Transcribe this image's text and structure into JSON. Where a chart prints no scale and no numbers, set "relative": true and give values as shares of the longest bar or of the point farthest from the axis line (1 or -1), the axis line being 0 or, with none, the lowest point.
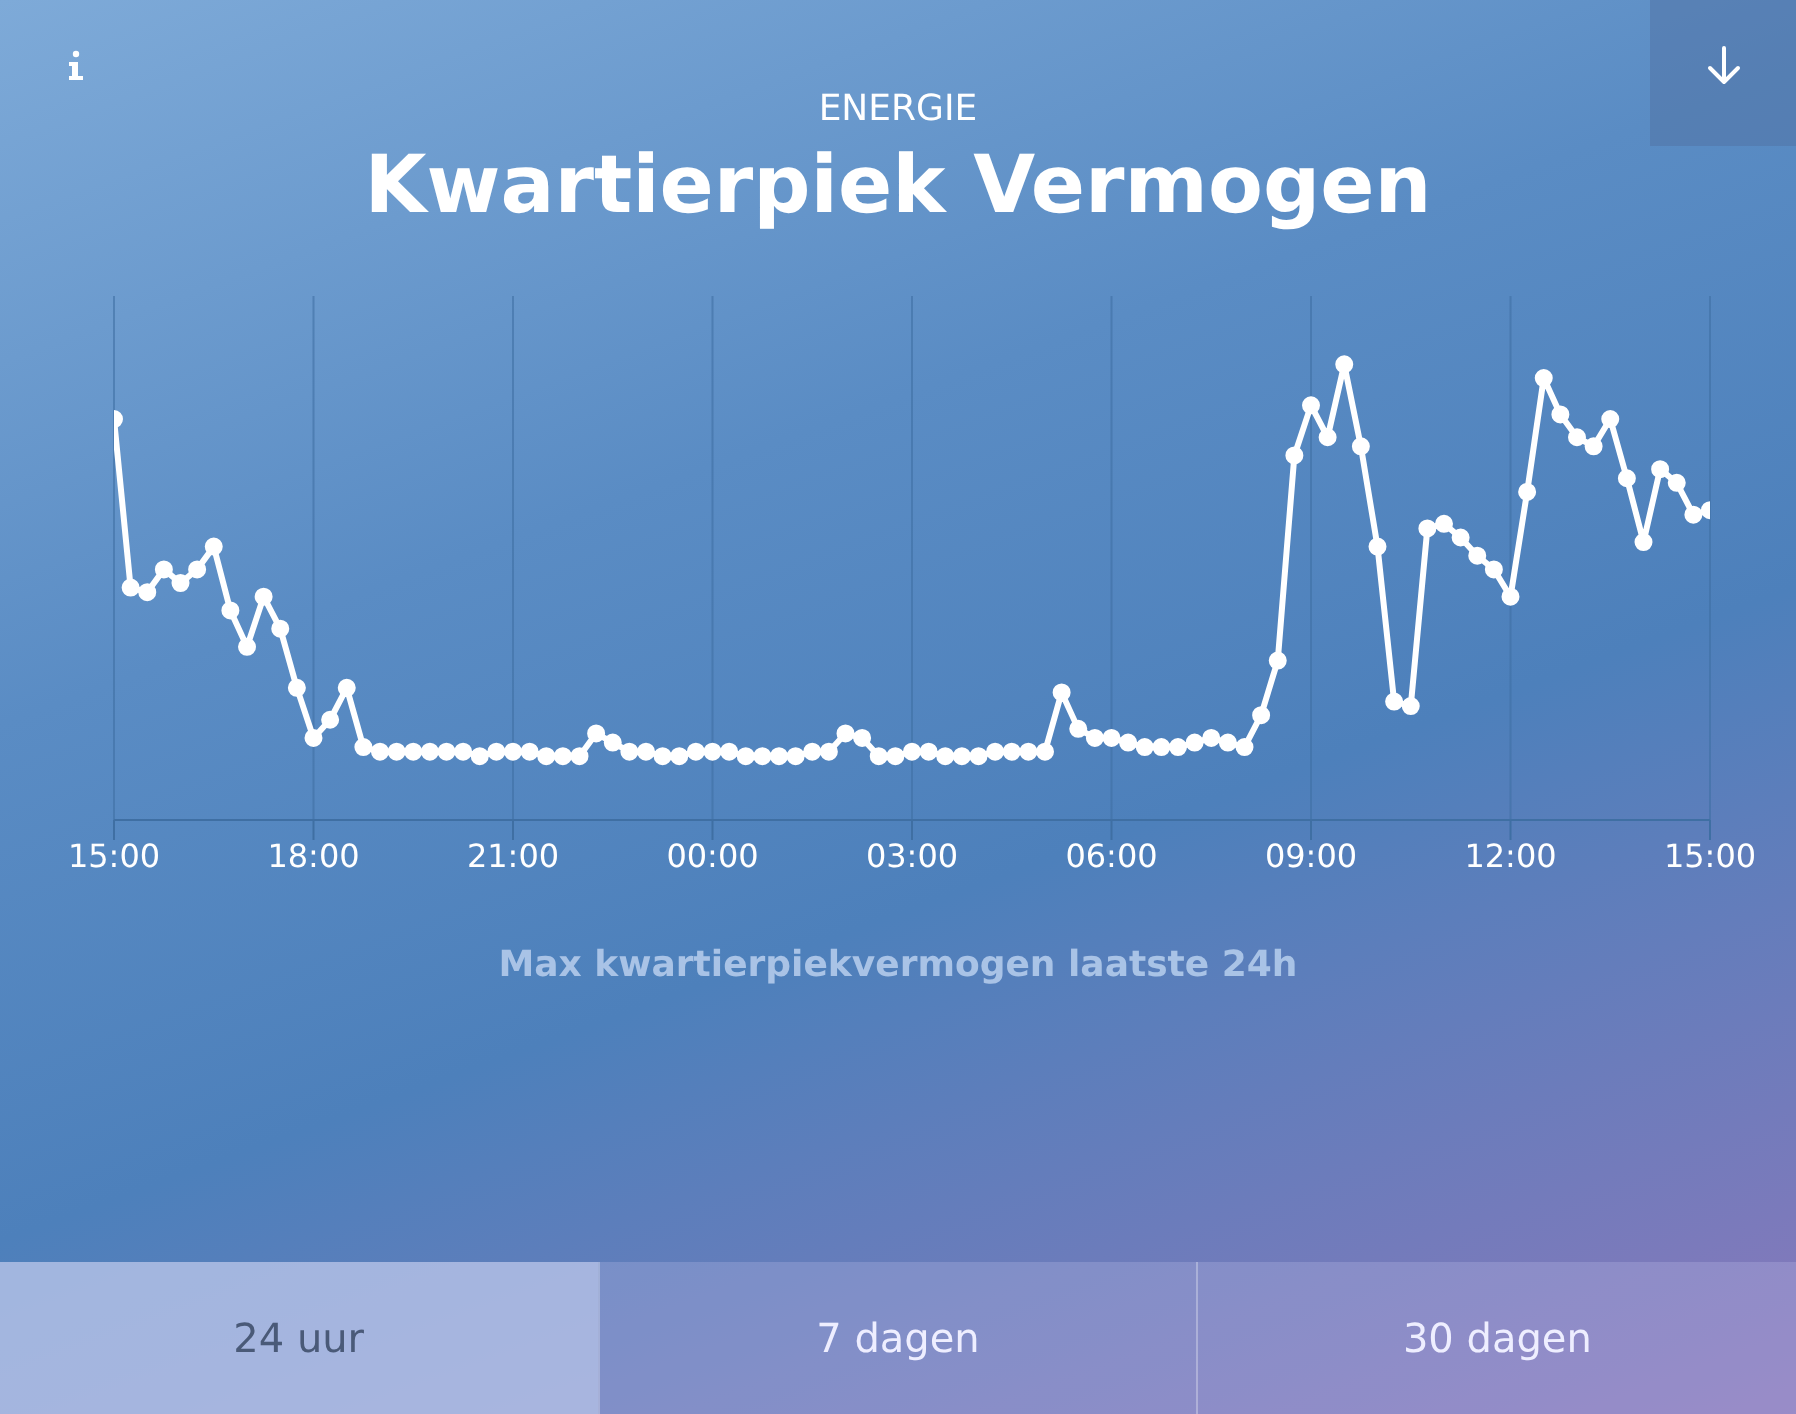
{
  "chart_data": {
    "type": "line",
    "subtitle": "ENERGIE",
    "title": "Kwartierpiek Vermogen",
    "annotations": [
      "Max kwartierpiekvermogen laatste 24h",
      "24 uur",
      "7 dagen",
      "30 dagen"
    ],
    "relative": true,
    "grid": "x",
    "marker": "circle",
    "line_style": "solid",
    "categories": [
      "15:00",
      null,
      null,
      null,
      null,
      null,
      null,
      null,
      null,
      null,
      null,
      null,
      "18:00",
      null,
      null,
      null,
      null,
      null,
      null,
      null,
      null,
      null,
      null,
      null,
      "21:00",
      null,
      null,
      null,
      null,
      null,
      null,
      null,
      null,
      null,
      null,
      null,
      "00:00",
      null,
      null,
      null,
      null,
      null,
      null,
      null,
      null,
      null,
      null,
      null,
      "03:00",
      null,
      null,
      null,
      null,
      null,
      null,
      null,
      null,
      null,
      null,
      null,
      "06:00",
      null,
      null,
      null,
      null,
      null,
      null,
      null,
      null,
      null,
      null,
      null,
      "09:00",
      null,
      null,
      null,
      null,
      null,
      null,
      null,
      null,
      null,
      null,
      null,
      "12:00",
      null,
      null,
      null,
      null,
      null,
      null,
      null,
      null,
      null,
      null,
      null,
      "15:00"
    ],
    "series": [
      {
        "color": "#ffffff",
        "values": [
          0.88,
          0.51,
          0.5,
          0.55,
          0.52,
          0.55,
          0.6,
          0.46,
          0.38,
          0.49,
          0.42,
          0.29,
          0.18,
          0.22,
          0.29,
          0.16,
          0.15,
          0.15,
          0.15,
          0.15,
          0.15,
          0.15,
          0.14,
          0.15,
          0.15,
          0.15,
          0.14,
          0.14,
          0.14,
          0.19,
          0.17,
          0.15,
          0.15,
          0.14,
          0.14,
          0.15,
          0.15,
          0.15,
          0.14,
          0.14,
          0.14,
          0.14,
          0.15,
          0.15,
          0.19,
          0.18,
          0.14,
          0.14,
          0.15,
          0.15,
          0.14,
          0.14,
          0.14,
          0.15,
          0.15,
          0.15,
          0.15,
          0.28,
          0.2,
          0.18,
          0.18,
          0.17,
          0.16,
          0.16,
          0.16,
          0.17,
          0.18,
          0.17,
          0.16,
          0.23,
          0.35,
          0.8,
          0.91,
          0.84,
          1,
          0.82,
          0.6,
          0.26,
          0.25,
          0.64,
          0.65,
          0.62,
          0.58,
          0.55,
          0.49,
          0.72,
          0.97,
          0.89,
          0.84,
          0.82,
          0.88,
          0.75,
          0.61,
          0.77,
          0.74,
          0.67,
          0.68
        ]
      }
    ]
  }
}
